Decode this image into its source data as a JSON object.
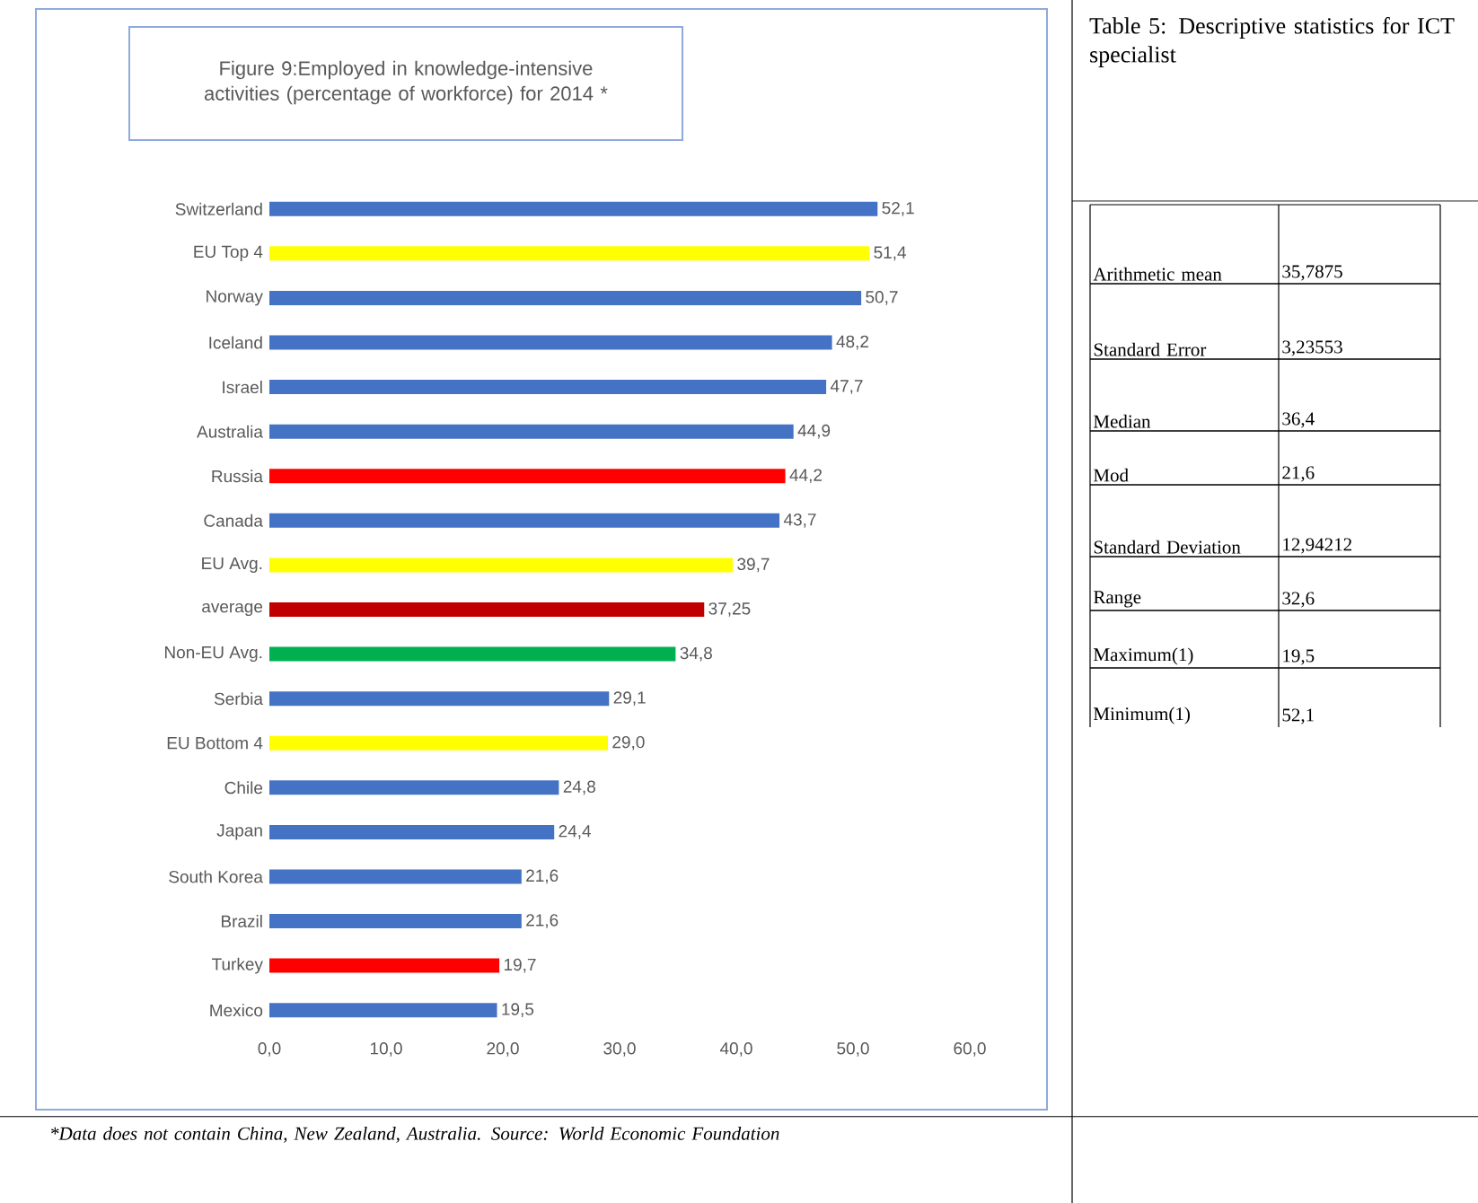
{
  "chart_data": [
    {
      "type": "bar",
      "orientation": "horizontal",
      "title": "Figure 9:Employed in knowledge-intensive activities (percentage of workforce) for 2014 *",
      "categories": [
        "Switzerland",
        "EU Top 4",
        "Norway",
        "Iceland",
        "Israel",
        "Australia",
        "Russia",
        "Canada",
        "EU Avg.",
        "average",
        "Non-EU Avg.",
        "Serbia",
        "EU Bottom 4",
        "Chile",
        "Japan",
        "South Korea",
        "Brazil",
        "Turkey",
        "Mexico"
      ],
      "values": [
        52.1,
        51.4,
        50.7,
        48.2,
        47.7,
        44.9,
        44.2,
        43.7,
        39.7,
        37.25,
        34.8,
        29.1,
        29.0,
        24.8,
        24.4,
        21.6,
        21.6,
        19.7,
        19.5
      ],
      "value_labels": [
        "52,1",
        "51,4",
        "50,7",
        "48,2",
        "47,7",
        "44,9",
        "44,2",
        "43,7",
        "39,7",
        "37,25",
        "34,8",
        "29,1",
        "29,0",
        "24,8",
        "24,4",
        "21,6",
        "21,6",
        "19,7",
        "19,5"
      ],
      "colors": [
        "#4472c4",
        "#ffff00",
        "#4472c4",
        "#4472c4",
        "#4472c4",
        "#4472c4",
        "#ff0000",
        "#4472c4",
        "#ffff00",
        "#c00000",
        "#00b050",
        "#4472c4",
        "#ffff00",
        "#4472c4",
        "#4472c4",
        "#4472c4",
        "#4472c4",
        "#ff0000",
        "#4472c4"
      ],
      "xlim": [
        0,
        60
      ],
      "xticks": [
        {
          "value": 0,
          "label": "0,0"
        },
        {
          "value": 10,
          "label": "10,0"
        },
        {
          "value": 20,
          "label": "20,0"
        },
        {
          "value": 30,
          "label": "30,0"
        },
        {
          "value": 40,
          "label": "40,0"
        },
        {
          "value": 50,
          "label": "50,0"
        },
        {
          "value": 60,
          "label": "60,0"
        }
      ],
      "annotations": [
        "*Data does not contain China, New Zealand, Australia. Source: World Economic Foundation"
      ]
    },
    {
      "type": "other",
      "title": "Table 5: Descriptive statistics for ICT specialist",
      "annotations": [
        "Arithmetic mean",
        "35,7875",
        "Standard Error",
        "3,23553",
        "Median",
        "36,4",
        "Mod",
        "21,6",
        "Standard Deviation",
        "12,94212",
        "Range",
        "32,6",
        "Maximum(1)",
        "19,5",
        "Minimum(1)",
        "52,1"
      ]
    }
  ]
}
